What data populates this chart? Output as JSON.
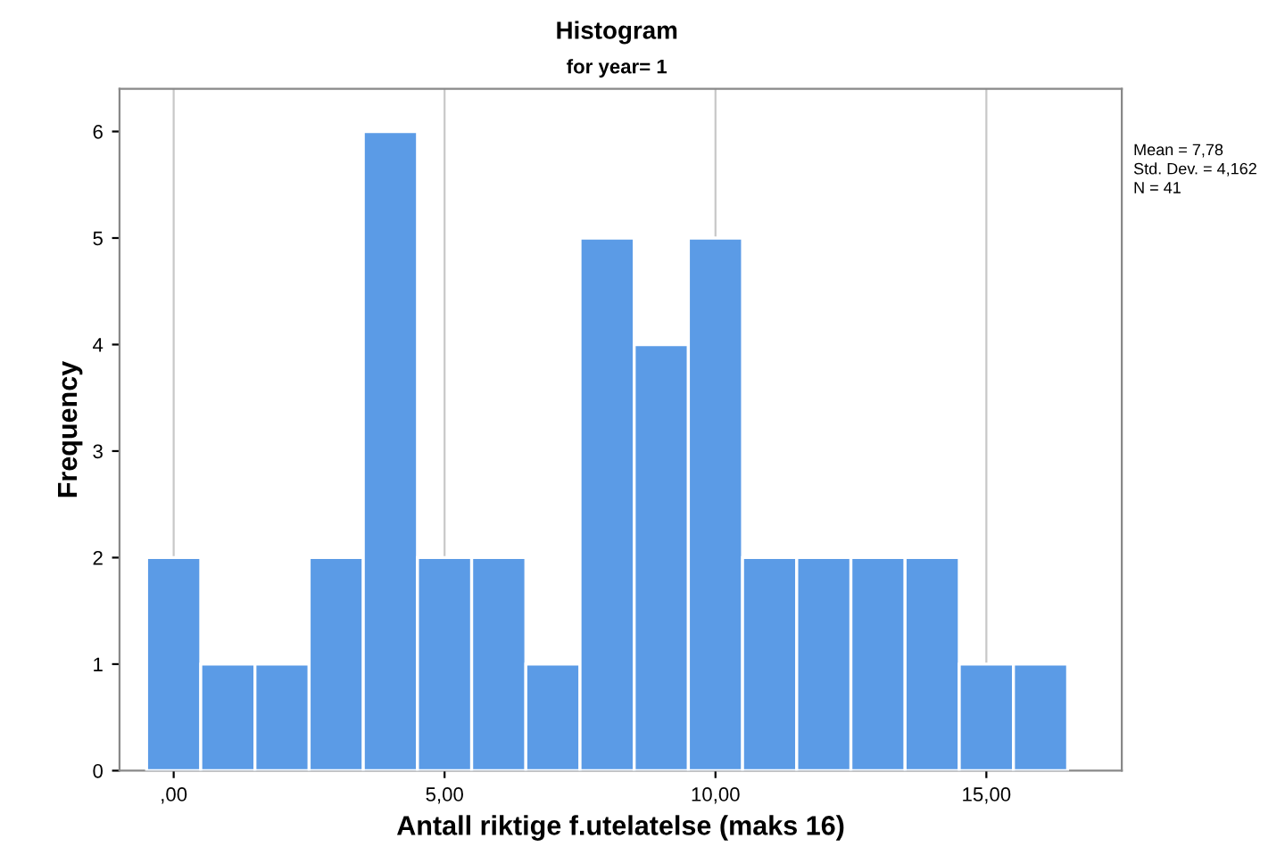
{
  "chart_data": {
    "type": "histogram",
    "title": "Histogram",
    "subtitle": "for year= 1",
    "xlabel": "Antall riktige f.utelatelse (maks 16)",
    "ylabel": "Frequency",
    "bins": [
      -0.5,
      0.5,
      1.5,
      2.5,
      3.5,
      4.5,
      5.5,
      6.5,
      7.5,
      8.5,
      9.5,
      10.5,
      11.5,
      12.5,
      13.5,
      14.5,
      15.5,
      16.5
    ],
    "values": [
      2,
      1,
      1,
      2,
      6,
      2,
      2,
      1,
      5,
      4,
      5,
      2,
      2,
      2,
      2,
      1,
      1
    ],
    "color": "#5b9be6",
    "xlim": [
      -1,
      17.5
    ],
    "xticks": [
      {
        "value": 0,
        "label": ",00"
      },
      {
        "value": 5,
        "label": "5,00"
      },
      {
        "value": 10,
        "label": "10,00"
      },
      {
        "value": 15,
        "label": "15,00"
      }
    ],
    "ylim": [
      0,
      6.4
    ],
    "yticks": [
      0,
      1,
      2,
      3,
      4,
      5,
      6
    ],
    "grid": "x",
    "annotations": [
      "Mean = 7,78",
      "Std. Dev. = 4,162",
      "N = 41"
    ]
  }
}
